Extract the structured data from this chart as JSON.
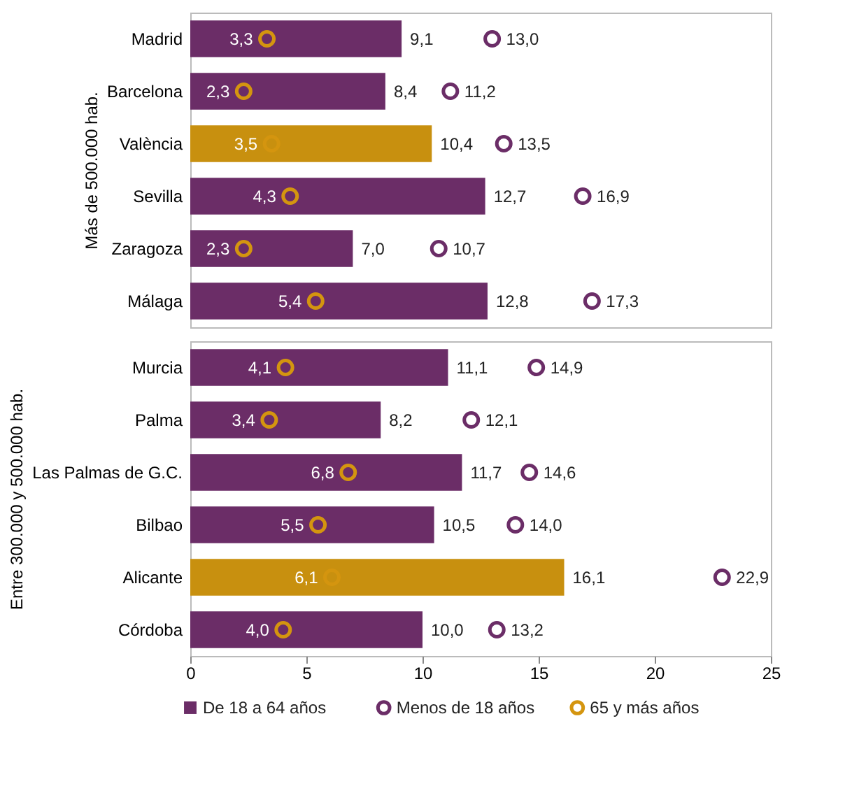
{
  "chart_data": [
    {
      "type": "bar",
      "orientation": "horizontal",
      "ylabel": "Más de 500.000 hab.",
      "categories": [
        "Madrid",
        "Barcelona",
        "València",
        "Sevilla",
        "Zaragoza",
        "Málaga"
      ],
      "xlim": [
        0,
        25
      ],
      "xticks": [
        0,
        5,
        10,
        15,
        20,
        25
      ],
      "tick_labels": "y",
      "grid": false,
      "marker": "circle",
      "legend": "bottom",
      "series": [
        {
          "name": "De 18 a 64 años",
          "color": "#6b2d67",
          "colors": [
            "#6b2d67",
            "#6b2d67",
            "#c8900f",
            "#6b2d67",
            "#6b2d67",
            "#6b2d67"
          ],
          "values": [
            9.1,
            8.4,
            10.4,
            12.7,
            7.0,
            12.8
          ],
          "value_labels": [
            "9,1",
            "8,4",
            "10,4",
            "12,7",
            "7,0",
            "12,8"
          ]
        },
        {
          "name": "Menos de 18 años",
          "type": "scatter",
          "color": "#6b2d67",
          "values": [
            13.0,
            11.2,
            13.5,
            16.9,
            10.7,
            17.3
          ],
          "value_labels": [
            "13,0",
            "11,2",
            "13,5",
            "16,9",
            "10,7",
            "17,3"
          ]
        },
        {
          "name": "65 y más años",
          "type": "scatter",
          "color": "#d4950f",
          "values": [
            3.3,
            2.3,
            3.5,
            4.3,
            2.3,
            5.4
          ],
          "value_labels": [
            "3,3",
            "2,3",
            "3,5",
            "4,3",
            "2,3",
            "5,4"
          ]
        }
      ]
    },
    {
      "type": "bar",
      "orientation": "horizontal",
      "ylabel": "Entre 300.000 y 500.000 hab.",
      "categories": [
        "Murcia",
        "Palma",
        "Las Palmas de G.C.",
        "Bilbao",
        "Alicante",
        "Córdoba"
      ],
      "xlim": [
        0,
        25
      ],
      "xticks": [
        0,
        5,
        10,
        15,
        20,
        25
      ],
      "grid": false,
      "marker": "circle",
      "series": [
        {
          "colors": [
            "#6b2d67",
            "#6b2d67",
            "#6b2d67",
            "#6b2d67",
            "#c8900f",
            "#6b2d67"
          ],
          "values": [
            11.1,
            8.2,
            11.7,
            10.5,
            16.1,
            10.0
          ],
          "value_labels": [
            "11,1",
            "8,2",
            "11,7",
            "10,5",
            "16,1",
            "10,0"
          ]
        },
        {
          "type": "scatter",
          "color": "#6b2d67",
          "values": [
            14.9,
            12.1,
            14.6,
            14.0,
            22.9,
            13.2
          ],
          "value_labels": [
            "14,9",
            "12,1",
            "14,6",
            "14,0",
            "22,9",
            "13,2"
          ]
        },
        {
          "type": "scatter",
          "color": "#d4950f",
          "values": [
            4.1,
            3.4,
            6.8,
            5.5,
            6.1,
            4.0
          ],
          "value_labels": [
            "4,1",
            "3,4",
            "6,8",
            "5,5",
            "6,1",
            "4,0"
          ]
        }
      ]
    }
  ]
}
